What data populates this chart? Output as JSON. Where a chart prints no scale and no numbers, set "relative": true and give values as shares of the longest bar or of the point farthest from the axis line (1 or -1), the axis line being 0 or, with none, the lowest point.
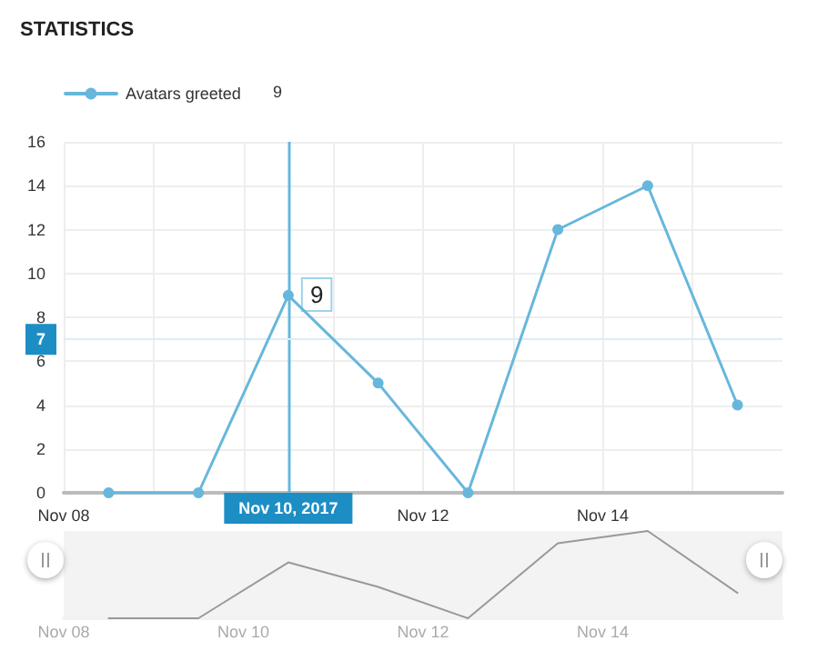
{
  "chart_data": [
    {
      "type": "line",
      "title": "STATISTICS",
      "x": [
        "2017-11-08T12:00",
        "2017-11-09T12:00",
        "2017-11-10T12:00",
        "2017-11-11T12:00",
        "2017-11-12T12:00",
        "2017-11-13T12:00",
        "2017-11-14T12:00",
        "2017-11-15T12:00"
      ],
      "series": [
        {
          "name": "Avatars greeted",
          "color": "#67b7dc",
          "values": [
            0,
            0,
            9,
            5,
            0,
            12,
            14,
            4
          ]
        }
      ],
      "xlim": [
        "2017-11-08",
        "2017-11-16"
      ],
      "xticks": [
        {
          "value": "2017-11-08",
          "label": "Nov 08"
        },
        {
          "value": "2017-11-09",
          "label": null
        },
        {
          "value": "2017-11-10",
          "label": null
        },
        {
          "value": "2017-11-11",
          "label": null
        },
        {
          "value": "2017-11-12",
          "label": "Nov 12"
        },
        {
          "value": "2017-11-13",
          "label": null
        },
        {
          "value": "2017-11-14",
          "label": "Nov 14"
        },
        {
          "value": "2017-11-15",
          "label": null
        }
      ],
      "ylim": [
        0,
        16
      ],
      "yticks": [
        0,
        2,
        4,
        6,
        8,
        10,
        12,
        14,
        16
      ],
      "grid": true,
      "legend": "top left",
      "marker": "circle",
      "line_style": "solid",
      "ref_lines": [
        {
          "axis": "x",
          "value": "2017-11-10T12:00",
          "label": "Nov 10, 2017",
          "color": "#67b7dc"
        },
        {
          "axis": "y",
          "value": 7,
          "label": "7",
          "color": "#d9eef8"
        }
      ],
      "annotations": [
        "9",
        {
          "text": "9",
          "x": "2017-11-10T12:00",
          "y": 9
        }
      ]
    },
    {
      "type": "line",
      "relative": true,
      "x": [
        "2017-11-08T12:00",
        "2017-11-09T12:00",
        "2017-11-10T12:00",
        "2017-11-11T12:00",
        "2017-11-12T12:00",
        "2017-11-13T12:00",
        "2017-11-14T12:00",
        "2017-11-15T12:00"
      ],
      "series": [
        {
          "color": "#999999",
          "values": [
            0,
            0,
            0.64,
            0.36,
            0,
            0.86,
            1,
            0.29
          ]
        }
      ],
      "xlim": [
        "2017-11-08",
        "2017-11-16"
      ],
      "xticks": [
        {
          "value": "2017-11-08",
          "label": "Nov 08"
        },
        {
          "value": "2017-11-10",
          "label": "Nov 10"
        },
        {
          "value": "2017-11-12",
          "label": "Nov 12"
        },
        {
          "value": "2017-11-14",
          "label": "Nov 14"
        }
      ],
      "tick_labels": "x",
      "marker": "none"
    }
  ]
}
